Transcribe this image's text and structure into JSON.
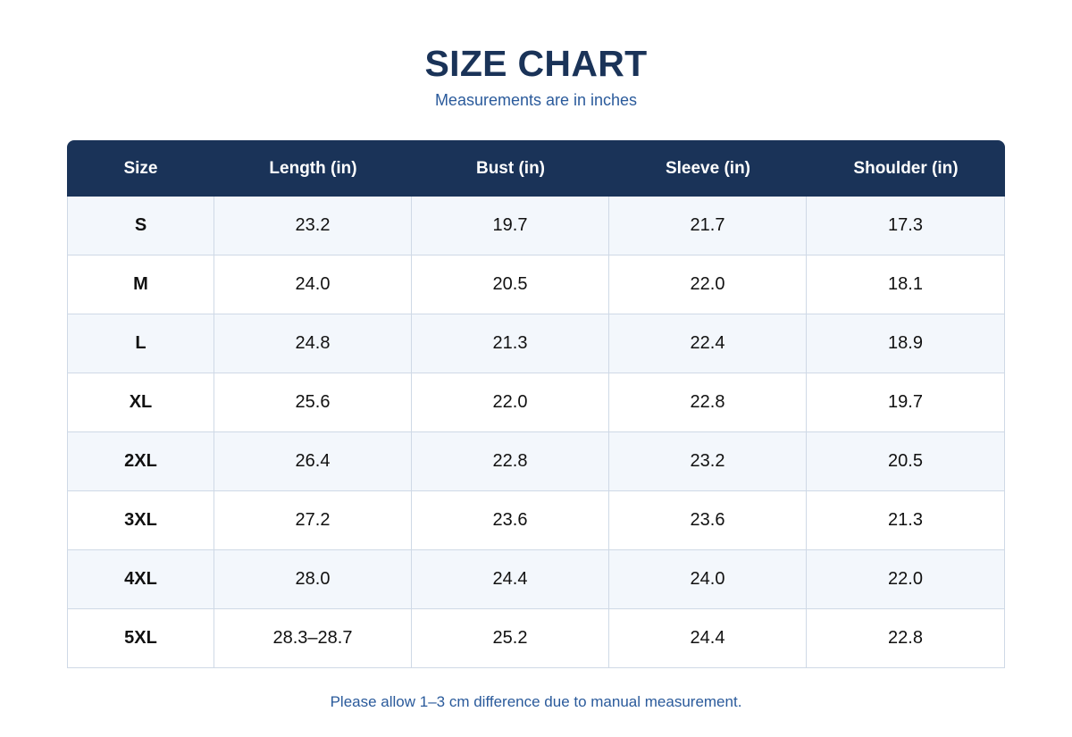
{
  "title": "SIZE CHART",
  "subtitle": "Measurements are in inches",
  "table": {
    "headers": [
      "Size",
      "Length (in)",
      "Bust (in)",
      "Sleeve (in)",
      "Shoulder (in)"
    ],
    "rows": [
      [
        "S",
        "23.2",
        "19.7",
        "21.7",
        "17.3"
      ],
      [
        "M",
        "24.0",
        "20.5",
        "22.0",
        "18.1"
      ],
      [
        "L",
        "24.8",
        "21.3",
        "22.4",
        "18.9"
      ],
      [
        "XL",
        "25.6",
        "22.0",
        "22.8",
        "19.7"
      ],
      [
        "2XL",
        "26.4",
        "22.8",
        "23.2",
        "20.5"
      ],
      [
        "3XL",
        "27.2",
        "23.6",
        "23.6",
        "21.3"
      ],
      [
        "4XL",
        "28.0",
        "24.4",
        "24.0",
        "22.0"
      ],
      [
        "5XL",
        "28.3–28.7",
        "25.2",
        "24.4",
        "22.8"
      ]
    ]
  },
  "note": "Please allow 1–3 cm difference due to manual measurement.",
  "colors": {
    "header_bg": "#1a3358",
    "accent_text": "#2a5a9b",
    "row_alt_bg": "#f3f7fc",
    "border": "#cfd9e6"
  }
}
